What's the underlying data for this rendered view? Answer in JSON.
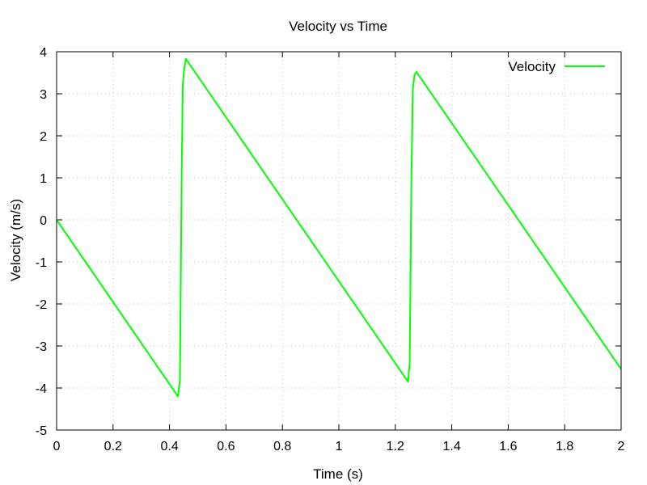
{
  "chart_data": {
    "type": "line",
    "title": "Velocity vs Time",
    "xlabel": "Time (s)",
    "ylabel": "Velocity (m/s)",
    "xlim": [
      0,
      2
    ],
    "ylim": [
      -5,
      4
    ],
    "x_ticks": [
      "0",
      "0.2",
      "0.4",
      "0.6",
      "0.8",
      "1",
      "1.2",
      "1.4",
      "1.6",
      "1.8",
      "2"
    ],
    "y_ticks": [
      "4",
      "3",
      "2",
      "1",
      "0",
      "-1",
      "-2",
      "-3",
      "-4",
      "-5"
    ],
    "grid": true,
    "legend_position": "top-right",
    "series": [
      {
        "name": "Velocity",
        "color": "#00ff00",
        "points": [
          [
            0.0,
            0.0
          ],
          [
            0.43,
            -4.2
          ],
          [
            0.437,
            -3.8
          ],
          [
            0.443,
            1.0
          ],
          [
            0.447,
            3.2
          ],
          [
            0.452,
            3.6
          ],
          [
            0.458,
            3.83
          ],
          [
            1.245,
            -3.85
          ],
          [
            1.251,
            -3.4
          ],
          [
            1.257,
            1.0
          ],
          [
            1.262,
            3.1
          ],
          [
            1.268,
            3.45
          ],
          [
            1.275,
            3.52
          ],
          [
            2.0,
            -3.55
          ]
        ]
      }
    ]
  }
}
